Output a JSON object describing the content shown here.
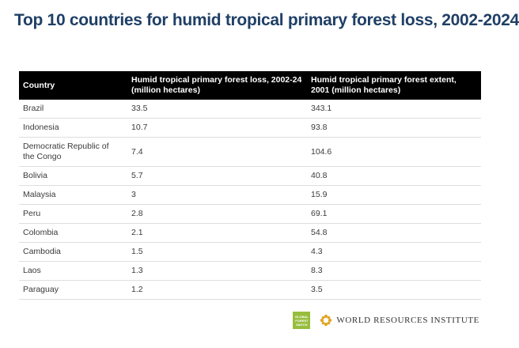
{
  "title": "Top 10 countries for humid tropical primary forest loss, 2002-2024",
  "chart_data": {
    "type": "table",
    "columns": [
      "Country",
      "Humid tropical primary forest loss, 2002-24 (million hectares)",
      "Humid tropical primary forest extent, 2001 (million hectares)"
    ],
    "rows": [
      {
        "country": "Brazil",
        "loss": "33.5",
        "extent": "343.1"
      },
      {
        "country": "Indonesia",
        "loss": "10.7",
        "extent": "93.8"
      },
      {
        "country": "Democratic Republic of the Congo",
        "loss": "7.4",
        "extent": "104.6"
      },
      {
        "country": "Bolivia",
        "loss": "5.7",
        "extent": "40.8"
      },
      {
        "country": "Malaysia",
        "loss": "3",
        "extent": "15.9"
      },
      {
        "country": "Peru",
        "loss": "2.8",
        "extent": "69.1"
      },
      {
        "country": "Colombia",
        "loss": "2.1",
        "extent": "54.8"
      },
      {
        "country": "Cambodia",
        "loss": "1.5",
        "extent": "4.3"
      },
      {
        "country": "Laos",
        "loss": "1.3",
        "extent": "8.3"
      },
      {
        "country": "Paraguay",
        "loss": "1.2",
        "extent": "3.5"
      }
    ]
  },
  "footer": {
    "gfw_logo_lines": [
      "GLOBAL",
      "FOREST",
      "WATCH"
    ],
    "wri_name": "WORLD RESOURCES INSTITUTE",
    "icons": [
      "gfw-logo-icon",
      "wri-flower-icon"
    ],
    "colors": {
      "gfw_green": "#97bd3d",
      "wri_gold": "#e0a526",
      "title_blue": "#1f3f66"
    }
  }
}
